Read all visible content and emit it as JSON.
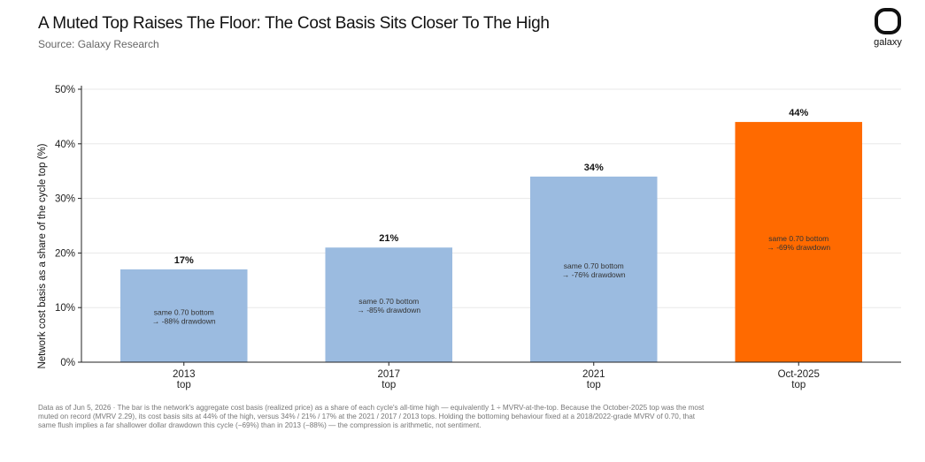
{
  "header": {
    "title": "A Muted Top Raises The Floor: The Cost Basis Sits Closer To The High",
    "subtitle": "Source: Galaxy Research"
  },
  "logo": {
    "icon": "galaxy-logo-icon",
    "text": "galaxy"
  },
  "chart_data": {
    "type": "bar",
    "categories": [
      {
        "line1": "2013",
        "line2": "top"
      },
      {
        "line1": "2017",
        "line2": "top"
      },
      {
        "line1": "2021",
        "line2": "top"
      },
      {
        "line1": "Oct-2025",
        "line2": "top"
      }
    ],
    "values": [
      17,
      21,
      34,
      44
    ],
    "value_labels": [
      "17%",
      "21%",
      "34%",
      "44%"
    ],
    "annotations": [
      {
        "line1": "same 0.70 bottom",
        "line2": "→ -88% drawdown"
      },
      {
        "line1": "same 0.70 bottom",
        "line2": "→ -85% drawdown"
      },
      {
        "line1": "same 0.70 bottom",
        "line2": "→ -76% drawdown"
      },
      {
        "line1": "same 0.70 bottom",
        "line2": "→ -69% drawdown"
      }
    ],
    "colors": [
      "#9bbbe0",
      "#9bbbe0",
      "#9bbbe0",
      "#ff6a00"
    ],
    "ylabel": "Network cost basis as a share of the cycle top (%)",
    "ylim": [
      0,
      50
    ],
    "yticks": [
      0,
      10,
      20,
      30,
      40,
      50
    ],
    "ytick_labels": [
      "0%",
      "10%",
      "20%",
      "30%",
      "40%",
      "50%"
    ],
    "grid": "horizontal",
    "legend": "none"
  },
  "footnote": "Data as of Jun 5, 2026 · The bar is the network's aggregate cost basis (realized price) as a share of each cycle's all-time high — equivalently 1 ÷ MVRV-at-the-top. Because the October-2025 top was the most muted on record (MVRV 2.29), its cost basis sits at 44% of the high, versus 34% / 21% / 17% at the 2021 / 2017 / 2013 tops. Holding the bottoming behaviour fixed at a 2018/2022-grade MVRV of 0.70, that same flush implies a far shallower dollar drawdown this cycle (−69%) than in 2013 (−88%) — the compression is arithmetic, not sentiment."
}
